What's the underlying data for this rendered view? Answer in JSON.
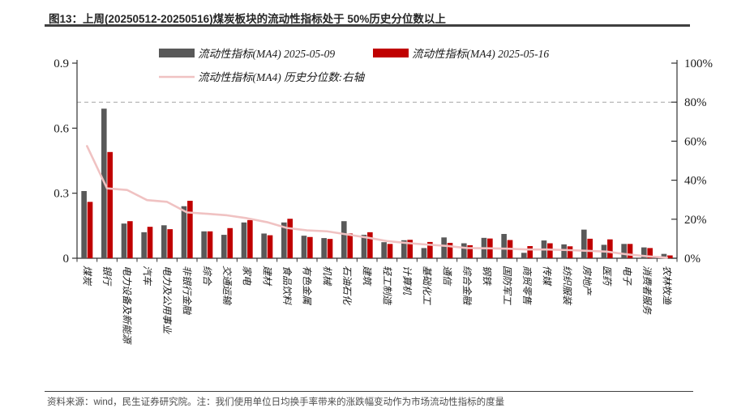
{
  "title": {
    "text": "图13：上周(20250512-20250516)煤炭板块的流动性指标处于 50%历史分位数以上"
  },
  "source_note": "资料来源：wind，民生证券研究院。注：我们使用单位日均换手率带来的涨跌幅变动作为市场流动性指标的度量",
  "colors": {
    "gray_bar": "#595959",
    "red_bar": "#c00000",
    "pink_line": "#f0c2c2",
    "dashed_line": "#a6a6a6",
    "axis": "#333333"
  },
  "chart_data": {
    "type": "bar",
    "title": "",
    "xlabel": "",
    "ylabel": "",
    "grid": false,
    "legend_position": "top",
    "categories": [
      "煤炭",
      "银行",
      "电力设备及新能源",
      "汽车",
      "电力及公用事业",
      "非银行金融",
      "综合",
      "交通运输",
      "家电",
      "建材",
      "食品饮料",
      "有色金属",
      "机械",
      "石油石化",
      "建筑",
      "轻工制造",
      "计算机",
      "基础化工",
      "通信",
      "综合金融",
      "钢铁",
      "国防军工",
      "商贸零售",
      "传媒",
      "纺织服装",
      "房地产",
      "医药",
      "电子",
      "消费者服务",
      "农林牧渔"
    ],
    "series": [
      {
        "name": "流动性指标(MA4) 2025-05-09",
        "type": "bar",
        "axis": "left",
        "color": "#595959",
        "values": [
          0.31,
          0.69,
          0.16,
          0.12,
          0.152,
          0.24,
          0.124,
          0.108,
          0.165,
          0.114,
          0.165,
          0.104,
          0.093,
          0.171,
          0.108,
          0.074,
          0.083,
          0.047,
          0.096,
          0.069,
          0.094,
          0.112,
          0.025,
          0.082,
          0.064,
          0.132,
          0.062,
          0.066,
          0.05,
          0.02
        ]
      },
      {
        "name": "流动性指标(MA4) 2025-05-16",
        "type": "bar",
        "axis": "left",
        "color": "#c00000",
        "values": [
          0.26,
          0.49,
          0.171,
          0.145,
          0.134,
          0.265,
          0.124,
          0.139,
          0.176,
          0.106,
          0.182,
          0.098,
          0.089,
          0.114,
          0.12,
          0.066,
          0.085,
          0.075,
          0.071,
          0.06,
          0.091,
          0.084,
          0.056,
          0.069,
          0.055,
          0.09,
          0.087,
          0.066,
          0.047,
          0.013
        ]
      },
      {
        "name": "流动性指标(MA4) 历史分位数:右轴",
        "type": "line",
        "axis": "right",
        "color": "#f0c2c2",
        "values": [
          57.5,
          35.8,
          35.0,
          29.8,
          28.9,
          23.5,
          22.8,
          22.0,
          20.5,
          18.5,
          15.5,
          14.3,
          13.8,
          12.2,
          10.6,
          8.8,
          7.8,
          7.0,
          6.3,
          5.2,
          5.1,
          4.9,
          4.5,
          4.5,
          4.2,
          3.8,
          3.4,
          2.0,
          1.0,
          0.3
        ]
      }
    ],
    "left_axis": {
      "min": 0,
      "max": 0.9,
      "tick_values": [
        0,
        0.3,
        0.6,
        0.9
      ],
      "tick_labels": [
        "0",
        "0.3",
        "0.6",
        "0.9"
      ]
    },
    "right_axis": {
      "min": 0,
      "max": 100,
      "tick_values": [
        0,
        20,
        40,
        60,
        80,
        100
      ],
      "tick_labels": [
        "0%",
        "20%",
        "40%",
        "60%",
        "80%",
        "100%"
      ]
    },
    "reference_line": {
      "axis": "right",
      "value": 80,
      "style": "dashed"
    }
  }
}
